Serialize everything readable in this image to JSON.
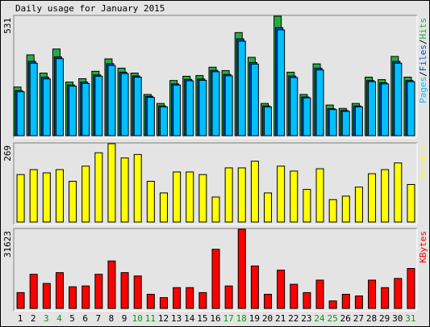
{
  "chart_data": {
    "type": "bar",
    "title": "Daily usage for January 2015",
    "categories": [
      "1",
      "2",
      "3",
      "4",
      "5",
      "6",
      "7",
      "8",
      "9",
      "10",
      "11",
      "12",
      "13",
      "14",
      "15",
      "16",
      "17",
      "18",
      "19",
      "20",
      "21",
      "22",
      "23",
      "24",
      "25",
      "26",
      "27",
      "28",
      "29",
      "30",
      "31"
    ],
    "category_colors": [
      "#000000",
      "#000000",
      "#00a000",
      "#00a000",
      "#000000",
      "#000000",
      "#000000",
      "#000000",
      "#000000",
      "#00a000",
      "#00a000",
      "#000000",
      "#000000",
      "#000000",
      "#000000",
      "#000000",
      "#00a000",
      "#00a000",
      "#000000",
      "#000000",
      "#000000",
      "#000000",
      "#000000",
      "#00a000",
      "#00a000",
      "#000000",
      "#000000",
      "#000000",
      "#000000",
      "#000000",
      "#00a000"
    ],
    "legend_separator": "/",
    "panels": [
      {
        "ymax": 531,
        "series": [
          {
            "name": "Hits",
            "color": "#20b040",
            "values": [
              216,
              359,
              278,
              385,
              238,
              253,
              286,
              341,
              300,
              278,
              183,
              143,
              245,
              264,
              267,
              304,
              289,
              458,
              348,
              143,
              531,
              282,
              183,
              319,
              136,
              121,
              143,
              260,
              249,
              352,
              260
            ]
          },
          {
            "name": "Files",
            "color": "#0050e0",
            "values": [
              200,
              330,
              260,
              350,
              225,
              238,
              270,
              320,
              282,
              265,
              175,
              132,
              230,
              250,
              252,
              290,
              272,
              430,
              325,
              132,
              480,
              265,
              172,
              300,
              120,
              112,
              132,
              245,
              235,
              330,
              245
            ]
          },
          {
            "name": "Pages",
            "color": "#00c0ff",
            "values": [
              195,
              322,
              252,
              342,
              220,
              232,
              264,
              312,
              276,
              260,
              170,
              128,
              225,
              244,
              246,
              284,
              266,
              420,
              318,
              128,
              470,
              258,
              168,
              292,
              116,
              108,
              128,
              240,
              230,
              322,
              240
            ]
          }
        ]
      },
      {
        "ymax": 269,
        "series": [
          {
            "name": "Visits",
            "color": "#ffff00",
            "values": [
              163,
              180,
              169,
              180,
              140,
              192,
              238,
              269,
              220,
              232,
              140,
              100,
              172,
              172,
              163,
              86,
              186,
              186,
              209,
              100,
              192,
              175,
              112,
              183,
              77,
              89,
              120,
              166,
              180,
              203,
              129
            ]
          }
        ]
      },
      {
        "ymax": 31623,
        "series": [
          {
            "name": "KBytes",
            "color": "#ff0000",
            "values": [
              6325,
              13648,
              9987,
              14314,
              8655,
              8988,
              13648,
              18974,
              14314,
              12982,
              5659,
              4327,
              8322,
              8322,
              6325,
              23634,
              8988,
              31623,
              16977,
              5659,
              15313,
              9654,
              6325,
              11317,
              2996,
              5659,
              4993,
              11317,
              8322,
              11983,
              15979
            ]
          }
        ]
      }
    ]
  }
}
